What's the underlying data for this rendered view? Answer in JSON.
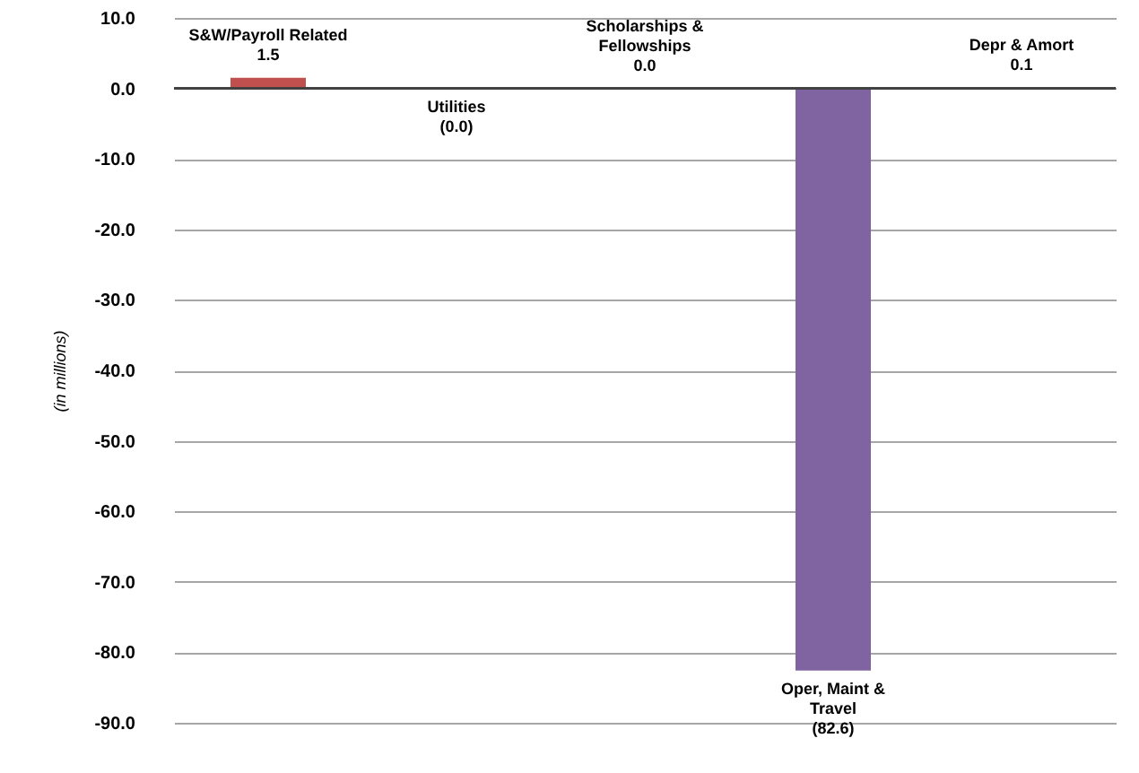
{
  "chart_data": {
    "type": "bar",
    "ylabel": "(in millions)",
    "categories": [
      "S&W/Payroll Related",
      "Utilities",
      "Scholarships & Fellowships",
      "Oper, Maint & Travel",
      "Depr & Amort"
    ],
    "values": [
      1.5,
      -0.02,
      0.0,
      -82.6,
      0.1
    ],
    "value_labels": [
      "1.5",
      "(0.0)",
      "0.0",
      "(82.6)",
      "0.1"
    ],
    "colors": [
      "#c0504d",
      "#9bbb59",
      "#4bacc6",
      "#8064a2",
      "#f79646"
    ],
    "ylim": [
      -90,
      10
    ],
    "yticks": [
      {
        "value": 10,
        "label": "10.0"
      },
      {
        "value": 0,
        "label": "0.0"
      },
      {
        "value": -10,
        "label": "-10.0"
      },
      {
        "value": -20,
        "label": "-20.0"
      },
      {
        "value": -30,
        "label": "-30.0"
      },
      {
        "value": -40,
        "label": "-40.0"
      },
      {
        "value": -50,
        "label": "-50.0"
      },
      {
        "value": -60,
        "label": "-60.0"
      },
      {
        "value": -70,
        "label": "-70.0"
      },
      {
        "value": -80,
        "label": "-80.0"
      },
      {
        "value": -90,
        "label": "-90.0"
      }
    ],
    "grid": "y",
    "tick_labels": "y"
  }
}
